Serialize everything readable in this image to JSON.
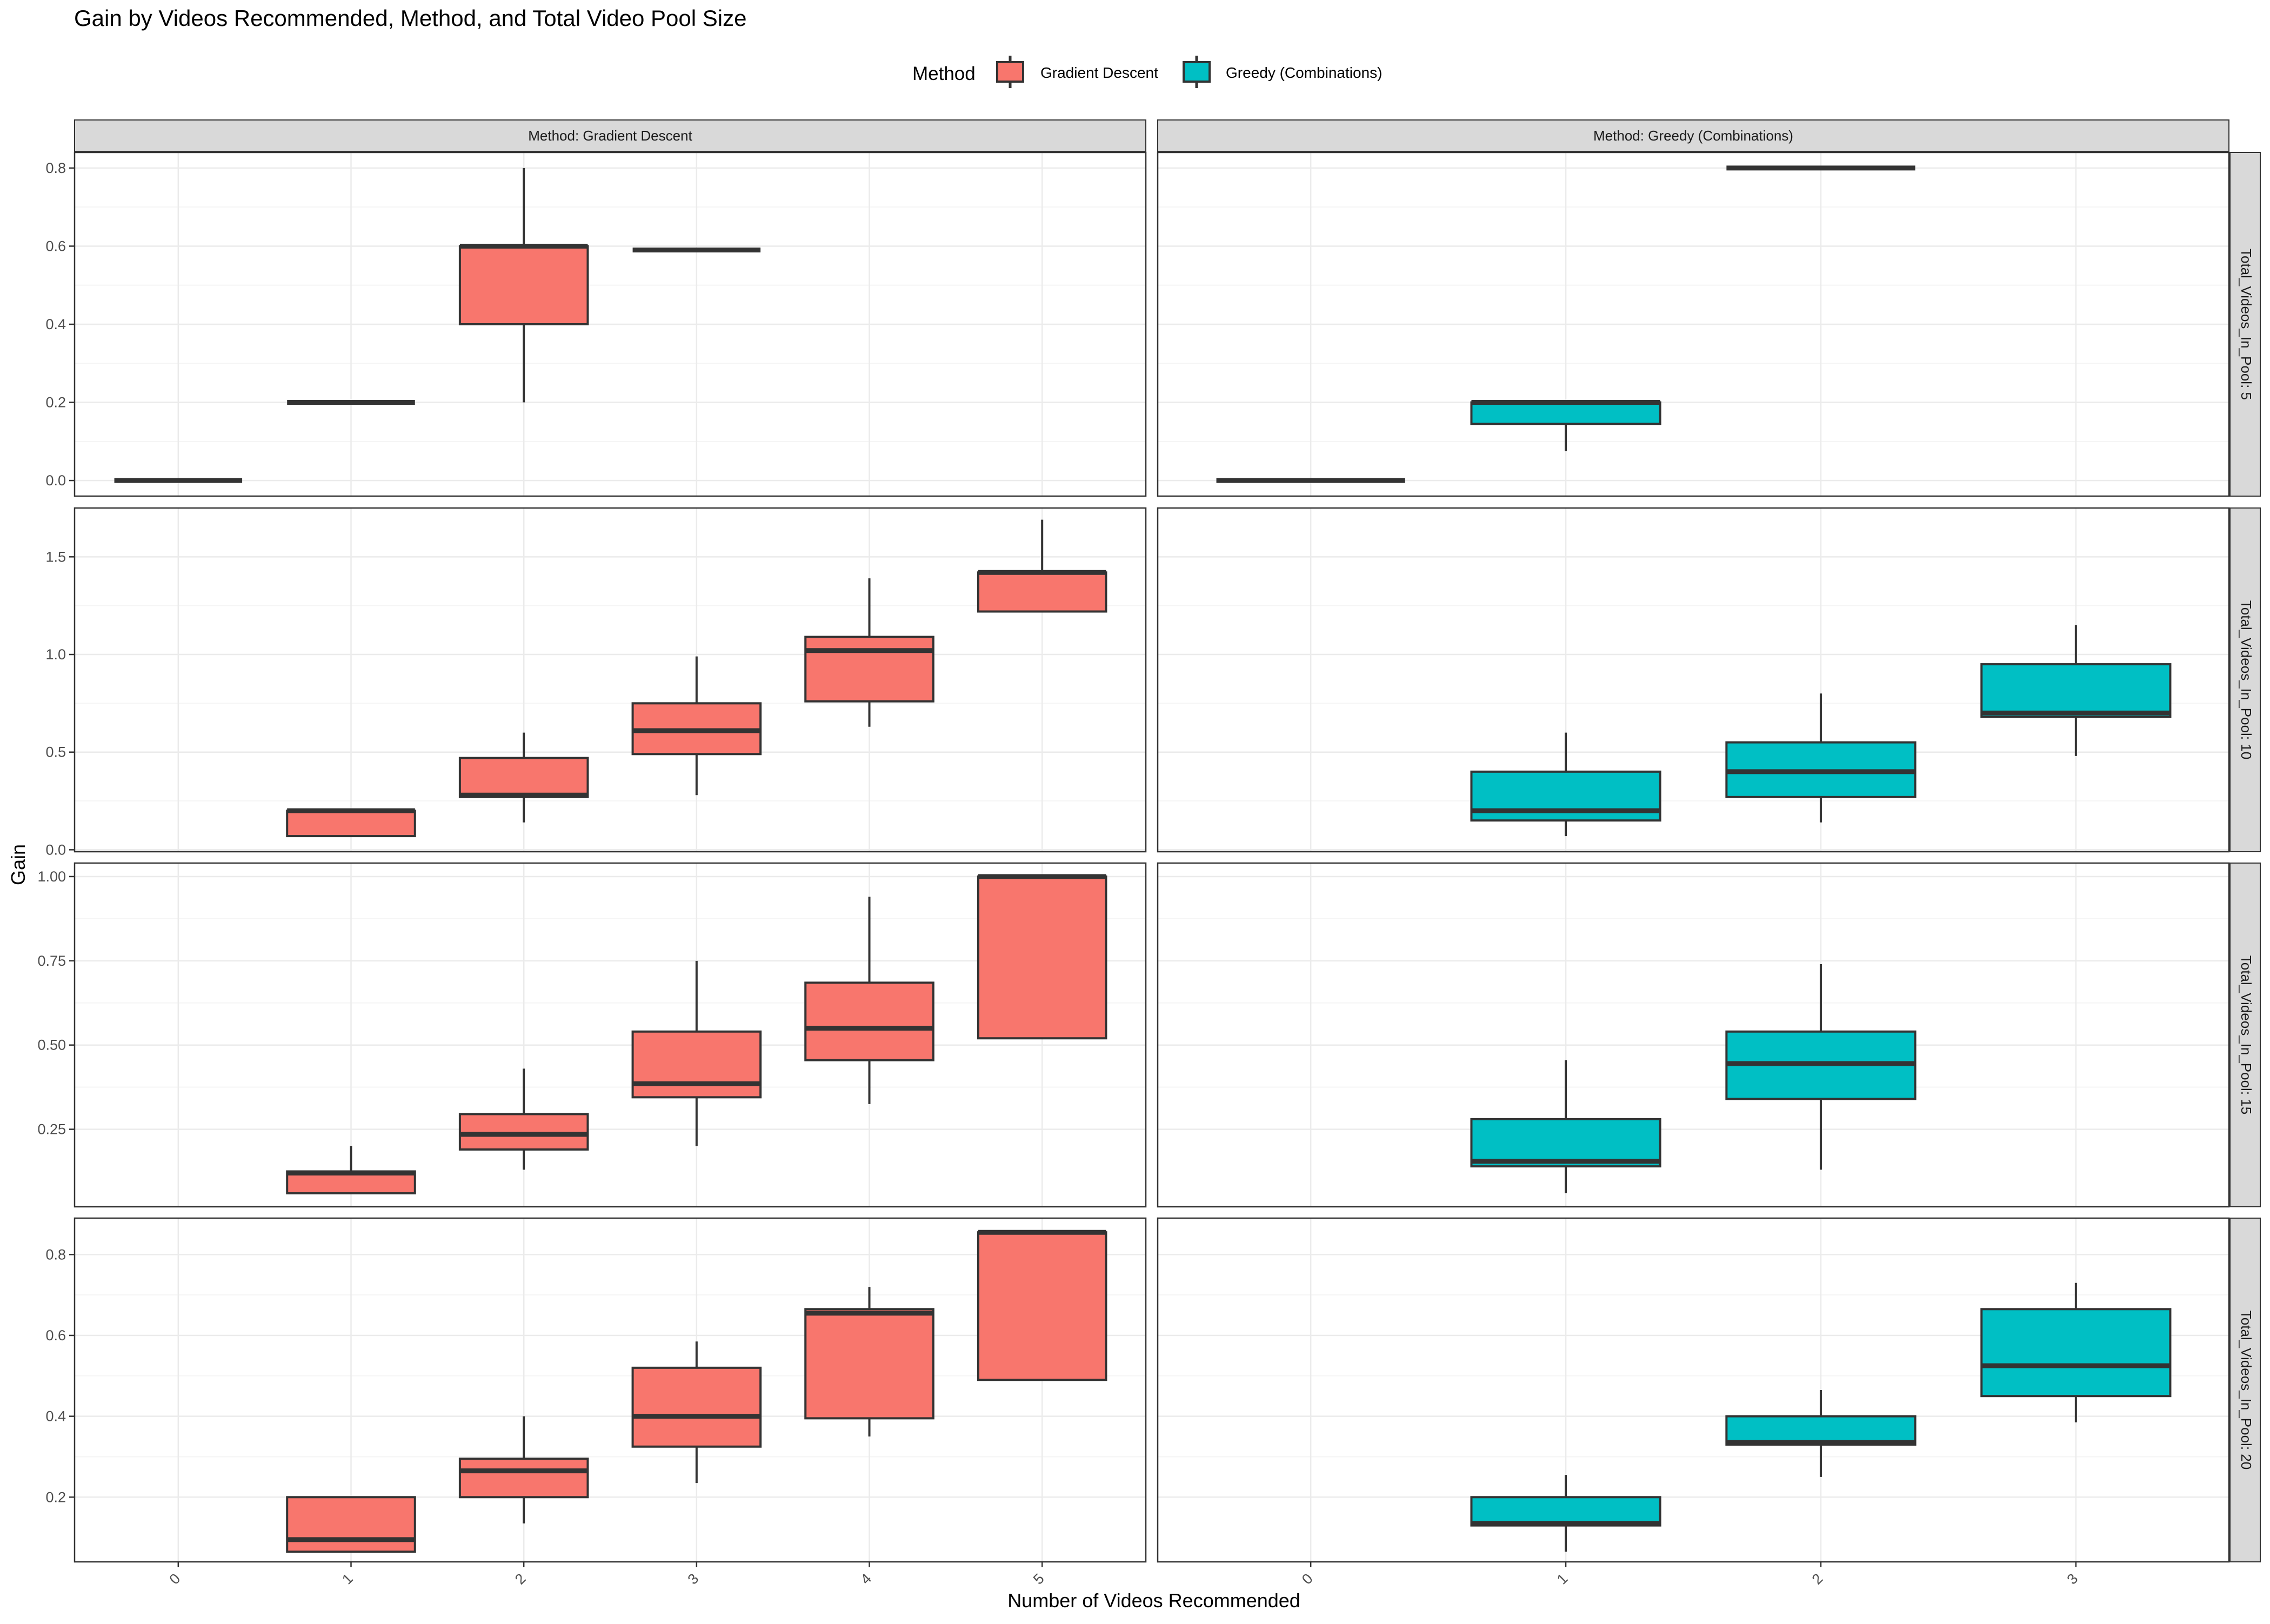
{
  "chart_data": {
    "type": "boxplot",
    "title": "Gain by Videos Recommended, Method, and Total Video Pool Size",
    "xlabel": "Number of Videos Recommended",
    "ylabel": "Gain",
    "legend": {
      "title": "Method",
      "position": "top",
      "entries": [
        {
          "label": "Gradient Descent",
          "color": "#F8766D"
        },
        {
          "label": "Greedy (Combinations)",
          "color": "#00BFC4"
        }
      ]
    },
    "grid": true,
    "columns": [
      {
        "label": "Method: Gradient Descent",
        "method": "Gradient Descent",
        "color": "#F8766D",
        "x_categories": [
          "0",
          "1",
          "2",
          "3",
          "4",
          "5"
        ]
      },
      {
        "label": "Method: Greedy (Combinations)",
        "method": "Greedy (Combinations)",
        "color": "#00BFC4",
        "x_categories": [
          "0",
          "1",
          "2",
          "3"
        ]
      }
    ],
    "rows": [
      {
        "label": "Total_Videos_In_Pool: 5",
        "ylim": [
          -0.04,
          0.84
        ],
        "yticks": [
          0.0,
          0.2,
          0.4,
          0.6,
          0.8
        ],
        "ytick_labels": [
          "0.0",
          "0.2",
          "0.4",
          "0.6",
          "0.8"
        ]
      },
      {
        "label": "Total_Videos_In_Pool: 10",
        "ylim": [
          -0.01,
          1.75
        ],
        "yticks": [
          0.0,
          0.5,
          1.0,
          1.5
        ],
        "ytick_labels": [
          "0.0",
          "0.5",
          "1.0",
          "1.5"
        ]
      },
      {
        "label": "Total_Videos_In_Pool: 15",
        "ylim": [
          0.02,
          1.04
        ],
        "yticks": [
          0.25,
          0.5,
          0.75,
          1.0
        ],
        "ytick_labels": [
          "0.25",
          "0.50",
          "0.75",
          "1.00"
        ]
      },
      {
        "label": "Total_Videos_In_Pool: 20",
        "ylim": [
          0.04,
          0.89
        ],
        "yticks": [
          0.2,
          0.4,
          0.6,
          0.8
        ],
        "ytick_labels": [
          "0.2",
          "0.4",
          "0.6",
          "0.8"
        ]
      }
    ],
    "boxes": [
      {
        "row": 0,
        "col": 0,
        "x": 0,
        "min": 0.0,
        "q1": 0.0,
        "median": 0.0,
        "q3": 0.0,
        "max": 0.0
      },
      {
        "row": 0,
        "col": 0,
        "x": 1,
        "min": 0.2,
        "q1": 0.2,
        "median": 0.2,
        "q3": 0.2,
        "max": 0.2
      },
      {
        "row": 0,
        "col": 0,
        "x": 2,
        "min": 0.2,
        "q1": 0.4,
        "median": 0.6,
        "q3": 0.6,
        "max": 0.8
      },
      {
        "row": 0,
        "col": 0,
        "x": 3,
        "min": 0.59,
        "q1": 0.59,
        "median": 0.59,
        "q3": 0.59,
        "max": 0.59
      },
      {
        "row": 0,
        "col": 1,
        "x": 0,
        "min": 0.0,
        "q1": 0.0,
        "median": 0.0,
        "q3": 0.0,
        "max": 0.0
      },
      {
        "row": 0,
        "col": 1,
        "x": 1,
        "min": 0.075,
        "q1": 0.145,
        "median": 0.2,
        "q3": 0.2,
        "max": 0.2
      },
      {
        "row": 0,
        "col": 1,
        "x": 2,
        "min": 0.8,
        "q1": 0.8,
        "median": 0.8,
        "q3": 0.8,
        "max": 0.8
      },
      {
        "row": 1,
        "col": 0,
        "x": 1,
        "min": 0.07,
        "q1": 0.07,
        "median": 0.2,
        "q3": 0.2,
        "max": 0.2
      },
      {
        "row": 1,
        "col": 0,
        "x": 2,
        "min": 0.14,
        "q1": 0.27,
        "median": 0.28,
        "q3": 0.47,
        "max": 0.6
      },
      {
        "row": 1,
        "col": 0,
        "x": 3,
        "min": 0.28,
        "q1": 0.49,
        "median": 0.61,
        "q3": 0.75,
        "max": 0.99
      },
      {
        "row": 1,
        "col": 0,
        "x": 4,
        "min": 0.63,
        "q1": 0.76,
        "median": 1.02,
        "q3": 1.09,
        "max": 1.39
      },
      {
        "row": 1,
        "col": 0,
        "x": 5,
        "min": 1.22,
        "q1": 1.22,
        "median": 1.42,
        "q3": 1.42,
        "max": 1.69
      },
      {
        "row": 1,
        "col": 1,
        "x": 1,
        "min": 0.07,
        "q1": 0.15,
        "median": 0.2,
        "q3": 0.4,
        "max": 0.6
      },
      {
        "row": 1,
        "col": 1,
        "x": 2,
        "min": 0.14,
        "q1": 0.27,
        "median": 0.4,
        "q3": 0.55,
        "max": 0.8
      },
      {
        "row": 1,
        "col": 1,
        "x": 3,
        "min": 0.48,
        "q1": 0.68,
        "median": 0.7,
        "q3": 0.95,
        "max": 1.15
      },
      {
        "row": 2,
        "col": 0,
        "x": 1,
        "min": 0.06,
        "q1": 0.06,
        "median": 0.12,
        "q3": 0.125,
        "max": 0.2
      },
      {
        "row": 2,
        "col": 0,
        "x": 2,
        "min": 0.13,
        "q1": 0.19,
        "median": 0.235,
        "q3": 0.295,
        "max": 0.43
      },
      {
        "row": 2,
        "col": 0,
        "x": 3,
        "min": 0.2,
        "q1": 0.345,
        "median": 0.385,
        "q3": 0.54,
        "max": 0.75
      },
      {
        "row": 2,
        "col": 0,
        "x": 4,
        "min": 0.325,
        "q1": 0.455,
        "median": 0.55,
        "q3": 0.685,
        "max": 0.94
      },
      {
        "row": 2,
        "col": 0,
        "x": 5,
        "min": 0.52,
        "q1": 0.52,
        "median": 1.0,
        "q3": 1.0,
        "max": 1.0
      },
      {
        "row": 2,
        "col": 1,
        "x": 1,
        "min": 0.06,
        "q1": 0.14,
        "median": 0.155,
        "q3": 0.28,
        "max": 0.455
      },
      {
        "row": 2,
        "col": 1,
        "x": 2,
        "min": 0.13,
        "q1": 0.34,
        "median": 0.445,
        "q3": 0.54,
        "max": 0.74
      },
      {
        "row": 3,
        "col": 0,
        "x": 1,
        "min": 0.065,
        "q1": 0.065,
        "median": 0.095,
        "q3": 0.2,
        "max": 0.2
      },
      {
        "row": 3,
        "col": 0,
        "x": 2,
        "min": 0.135,
        "q1": 0.2,
        "median": 0.265,
        "q3": 0.295,
        "max": 0.4
      },
      {
        "row": 3,
        "col": 0,
        "x": 3,
        "min": 0.235,
        "q1": 0.325,
        "median": 0.4,
        "q3": 0.52,
        "max": 0.585
      },
      {
        "row": 3,
        "col": 0,
        "x": 4,
        "min": 0.35,
        "q1": 0.395,
        "median": 0.655,
        "q3": 0.665,
        "max": 0.72
      },
      {
        "row": 3,
        "col": 0,
        "x": 5,
        "min": 0.49,
        "q1": 0.49,
        "median": 0.855,
        "q3": 0.855,
        "max": 0.855
      },
      {
        "row": 3,
        "col": 1,
        "x": 1,
        "min": 0.065,
        "q1": 0.13,
        "median": 0.135,
        "q3": 0.2,
        "max": 0.255
      },
      {
        "row": 3,
        "col": 1,
        "x": 2,
        "min": 0.25,
        "q1": 0.33,
        "median": 0.335,
        "q3": 0.4,
        "max": 0.465
      },
      {
        "row": 3,
        "col": 1,
        "x": 3,
        "min": 0.385,
        "q1": 0.45,
        "median": 0.525,
        "q3": 0.665,
        "max": 0.73
      }
    ]
  }
}
